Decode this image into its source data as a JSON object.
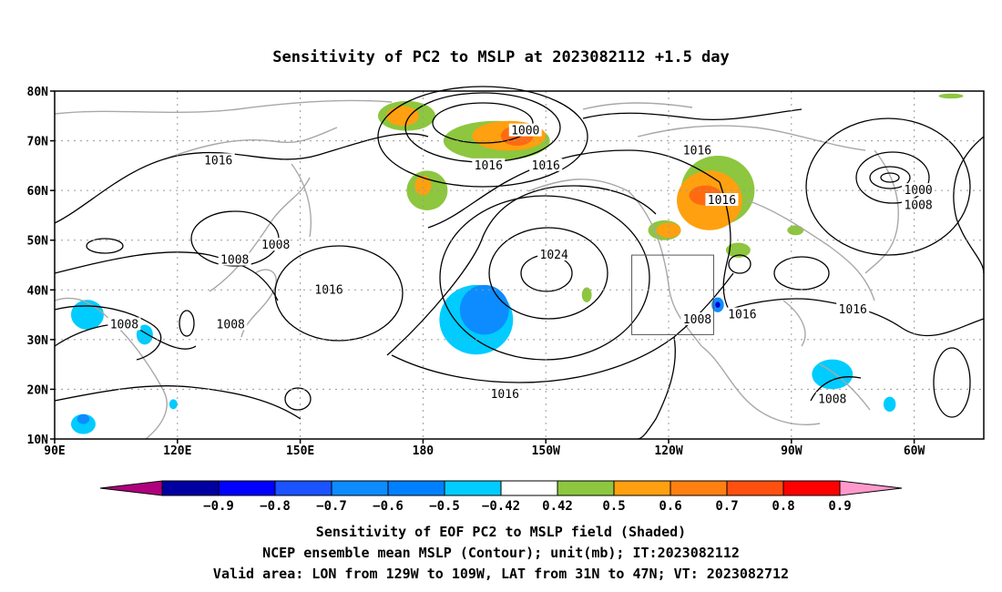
{
  "chart_data": {
    "type": "contour-map",
    "title": "Sensitivity of PC2 to MSLP at 2023082112 +1.5 day",
    "x_ticks": [
      {
        "lon": 90,
        "label": "90E"
      },
      {
        "lon": 120,
        "label": "120E"
      },
      {
        "lon": 150,
        "label": "150E"
      },
      {
        "lon": 180,
        "label": "180"
      },
      {
        "lon": 210,
        "label": "150W"
      },
      {
        "lon": 240,
        "label": "120W"
      },
      {
        "lon": 270,
        "label": "90W"
      },
      {
        "lon": 300,
        "label": "60W"
      }
    ],
    "y_ticks": [
      {
        "lat": 10,
        "label": "10N"
      },
      {
        "lat": 20,
        "label": "20N"
      },
      {
        "lat": 30,
        "label": "30N"
      },
      {
        "lat": 40,
        "label": "40N"
      },
      {
        "lat": 50,
        "label": "50N"
      },
      {
        "lat": 60,
        "label": "60N"
      },
      {
        "lat": 70,
        "label": "70N"
      },
      {
        "lat": 80,
        "label": "80N"
      }
    ],
    "lon_range": [
      90,
      317
    ],
    "lat_range": [
      10,
      80
    ],
    "grid": true,
    "valid_box": {
      "lon_min": 231,
      "lon_max": 251,
      "lat_min": 31,
      "lat_max": 47
    },
    "contour_labels": [
      {
        "text": "1000",
        "lon": 205,
        "lat": 72
      },
      {
        "text": "1016",
        "lon": 130,
        "lat": 66
      },
      {
        "text": "1016",
        "lon": 196,
        "lat": 65
      },
      {
        "text": "1016",
        "lon": 210,
        "lat": 65
      },
      {
        "text": "1016",
        "lon": 247,
        "lat": 68
      },
      {
        "text": "1016",
        "lon": 253,
        "lat": 58
      },
      {
        "text": "1000",
        "lon": 301,
        "lat": 60
      },
      {
        "text": "1008",
        "lon": 301,
        "lat": 57
      },
      {
        "text": "1008",
        "lon": 144,
        "lat": 49
      },
      {
        "text": "1008",
        "lon": 134,
        "lat": 46
      },
      {
        "text": "1024",
        "lon": 212,
        "lat": 47
      },
      {
        "text": "1016",
        "lon": 157,
        "lat": 40
      },
      {
        "text": "1008",
        "lon": 107,
        "lat": 33
      },
      {
        "text": "1008",
        "lon": 133,
        "lat": 33
      },
      {
        "text": "1008",
        "lon": 247,
        "lat": 34
      },
      {
        "text": "1016",
        "lon": 258,
        "lat": 35
      },
      {
        "text": "1016",
        "lon": 200,
        "lat": 19
      },
      {
        "text": "1008",
        "lon": 280,
        "lat": 18
      },
      {
        "text": "1016",
        "lon": 285,
        "lat": 36
      }
    ],
    "shaded_regions": [
      {
        "value": 0.5,
        "color": "#8dc63f",
        "lon": 176,
        "lat": 75,
        "rx": 7,
        "ry": 3
      },
      {
        "value": 0.6,
        "color": "#ffa010",
        "lon": 175,
        "lat": 75,
        "rx": 4,
        "ry": 2
      },
      {
        "value": 0.5,
        "color": "#8dc63f",
        "lon": 198,
        "lat": 70,
        "rx": 13,
        "ry": 4
      },
      {
        "value": 0.6,
        "color": "#ffa010",
        "lon": 201,
        "lat": 71,
        "rx": 9,
        "ry": 3
      },
      {
        "value": 0.7,
        "color": "#ff6a10",
        "lon": 203,
        "lat": 71,
        "rx": 4,
        "ry": 2
      },
      {
        "value": 0.5,
        "color": "#8dc63f",
        "lon": 181,
        "lat": 60,
        "rx": 5,
        "ry": 4
      },
      {
        "value": 0.6,
        "color": "#ffa010",
        "lon": 180,
        "lat": 61,
        "rx": 2,
        "ry": 2
      },
      {
        "value": 0.5,
        "color": "#8dc63f",
        "lon": 252,
        "lat": 60,
        "rx": 9,
        "ry": 7
      },
      {
        "value": 0.6,
        "color": "#ffa010",
        "lon": 250,
        "lat": 58,
        "rx": 8,
        "ry": 6
      },
      {
        "value": 0.7,
        "color": "#ff6a10",
        "lon": 249,
        "lat": 59,
        "rx": 4,
        "ry": 2
      },
      {
        "value": 0.5,
        "color": "#8dc63f",
        "lon": 239,
        "lat": 52,
        "rx": 4,
        "ry": 2
      },
      {
        "value": 0.6,
        "color": "#ffa010",
        "lon": 240,
        "lat": 52,
        "rx": 3,
        "ry": 1.5
      },
      {
        "value": 0.5,
        "color": "#8dc63f",
        "lon": 257,
        "lat": 48,
        "rx": 3,
        "ry": 1.5
      },
      {
        "value": 0.5,
        "color": "#8dc63f",
        "lon": 220,
        "lat": 39,
        "rx": 1.2,
        "ry": 1.5
      },
      {
        "value": 0.5,
        "color": "#8dc63f",
        "lon": 271,
        "lat": 52,
        "rx": 2,
        "ry": 1
      },
      {
        "value": 0.5,
        "color": "#8dc63f",
        "lon": 309,
        "lat": 79,
        "rx": 3,
        "ry": 0.5
      },
      {
        "value": -0.5,
        "color": "#00ccff",
        "lon": 193,
        "lat": 34,
        "rx": 9,
        "ry": 7
      },
      {
        "value": -0.6,
        "color": "#0d8cff",
        "lon": 195,
        "lat": 36,
        "rx": 6,
        "ry": 5
      },
      {
        "value": -0.6,
        "color": "#0d8cff",
        "lon": 252,
        "lat": 37,
        "rx": 1.5,
        "ry": 1.5
      },
      {
        "value": -0.8,
        "color": "#0000d0",
        "lon": 252,
        "lat": 37,
        "rx": 0.6,
        "ry": 0.6
      },
      {
        "value": -0.5,
        "color": "#00ccff",
        "lon": 280,
        "lat": 23,
        "rx": 5,
        "ry": 3
      },
      {
        "value": -0.5,
        "color": "#00ccff",
        "lon": 97,
        "lat": 13,
        "rx": 3,
        "ry": 2
      },
      {
        "value": -0.6,
        "color": "#0d8cff",
        "lon": 97,
        "lat": 14,
        "rx": 1.5,
        "ry": 1
      },
      {
        "value": -0.5,
        "color": "#00ccff",
        "lon": 98,
        "lat": 35,
        "rx": 4,
        "ry": 3
      },
      {
        "value": -0.5,
        "color": "#00ccff",
        "lon": 112,
        "lat": 31,
        "rx": 2,
        "ry": 2
      },
      {
        "value": -0.5,
        "color": "#00ccff",
        "lon": 119,
        "lat": 17,
        "rx": 1,
        "ry": 1
      },
      {
        "value": -0.5,
        "color": "#00ccff",
        "lon": 294,
        "lat": 17,
        "rx": 1.5,
        "ry": 1.5
      }
    ],
    "colorbar": {
      "colors": [
        "#b0007d",
        "#0000a0",
        "#0000ff",
        "#1a53ff",
        "#0d8cff",
        "#0080ff",
        "#00ccff",
        "#ffffff",
        "#8dc63f",
        "#ffa010",
        "#ff8010",
        "#ff5010",
        "#ff0000",
        "#ff99cc"
      ],
      "labels": [
        "-0.9",
        "-0.8",
        "-0.7",
        "-0.6",
        "-0.5",
        "-0.42",
        "0.42",
        "0.5",
        "0.6",
        "0.7",
        "0.8",
        "0.9"
      ]
    }
  },
  "captions": [
    "Sensitivity of EOF PC2 to MSLP field (Shaded)",
    "NCEP ensemble mean MSLP (Contour); unit(mb); IT:2023082112",
    "Valid area: LON from 129W to 109W, LAT from 31N to 47N; VT: 2023082712"
  ]
}
